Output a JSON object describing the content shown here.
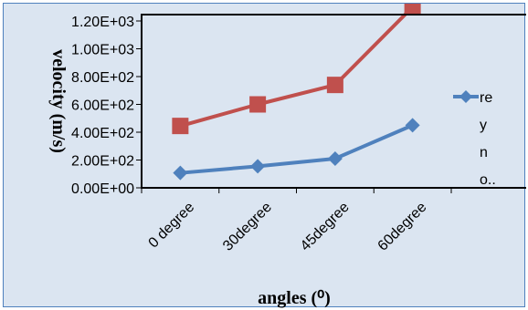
{
  "chart_data": {
    "type": "line",
    "categories": [
      "0 degree",
      "30degree",
      "45degree",
      "60degree"
    ],
    "series": [
      {
        "name": "re y n o...",
        "color": "#4f81bd",
        "marker": "diamond",
        "values": [
          107,
          155,
          210,
          450
        ]
      },
      {
        "name": "",
        "color": "#c0504d",
        "marker": "square",
        "values": [
          445,
          600,
          740,
          1300
        ]
      }
    ],
    "ylim": [
      0,
      1600
    ],
    "yticks": [
      "0.00E+00",
      "2.00E+02",
      "4.00E+02",
      "6.00E+02",
      "8.00E+02",
      "1.00E+03",
      "1.20E+03"
    ],
    "xlabel": "angles (⁰)",
    "ylabel": "velocity (m/s)",
    "legend_lines": [
      "re",
      "y",
      "n",
      "o.."
    ],
    "legend": "right",
    "grid": false
  }
}
